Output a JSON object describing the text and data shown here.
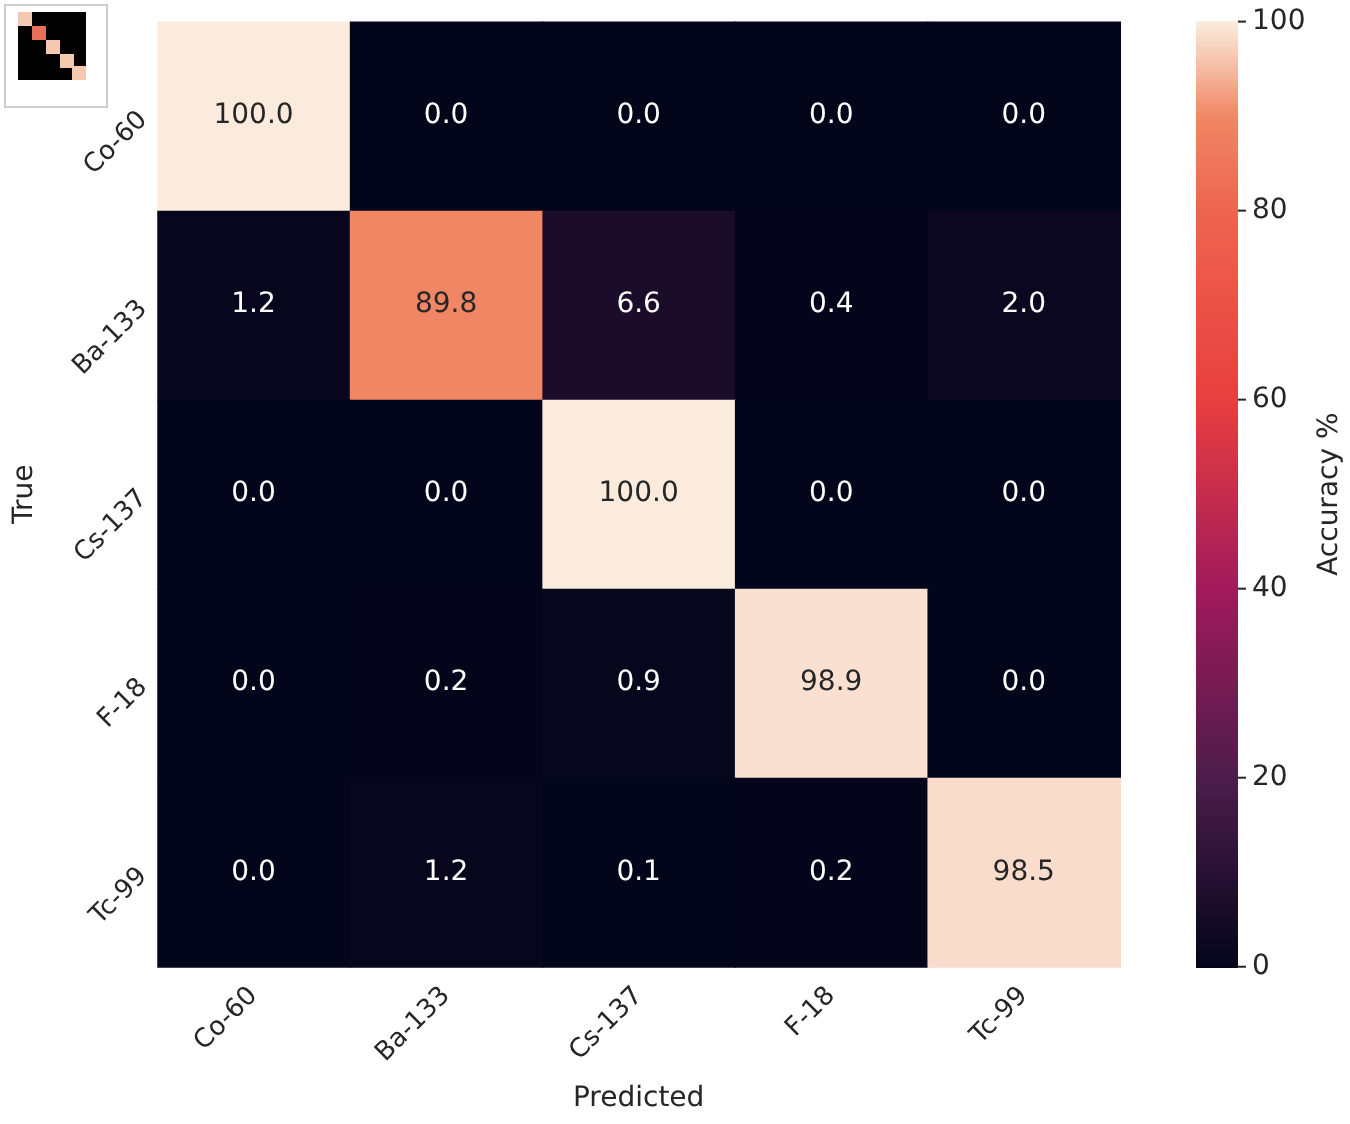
{
  "chart_data": {
    "type": "heatmap",
    "xlabel": "Predicted",
    "ylabel": "True",
    "clabel": "Accuracy %",
    "categories": [
      "Co-60",
      "Ba-133",
      "Cs-137",
      "F-18",
      "Tc-99"
    ],
    "y_categories": [
      "Co-60",
      "Ba-133",
      "Cs-137",
      "F-18",
      "Tc-99"
    ],
    "cells": [
      [
        100.0,
        0.0,
        0.0,
        0.0,
        0.0
      ],
      [
        1.2,
        89.8,
        6.6,
        0.4,
        2.0
      ],
      [
        0.0,
        0.0,
        100.0,
        0.0,
        0.0
      ],
      [
        0.0,
        0.2,
        0.9,
        98.9,
        0.0
      ],
      [
        0.0,
        1.2,
        0.1,
        0.2,
        98.5
      ]
    ],
    "cell_labels": [
      [
        "100.0",
        "0.0",
        "0.0",
        "0.0",
        "0.0"
      ],
      [
        "1.2",
        "89.8",
        "6.6",
        "0.4",
        "2.0"
      ],
      [
        "0.0",
        "0.0",
        "100.0",
        "0.0",
        "0.0"
      ],
      [
        "0.0",
        "0.2",
        "0.9",
        "98.9",
        "0.0"
      ],
      [
        "0.0",
        "1.2",
        "0.1",
        "0.2",
        "98.5"
      ]
    ],
    "clim": [
      0,
      100
    ],
    "cticks": [
      0,
      20,
      40,
      60,
      80,
      100
    ]
  }
}
